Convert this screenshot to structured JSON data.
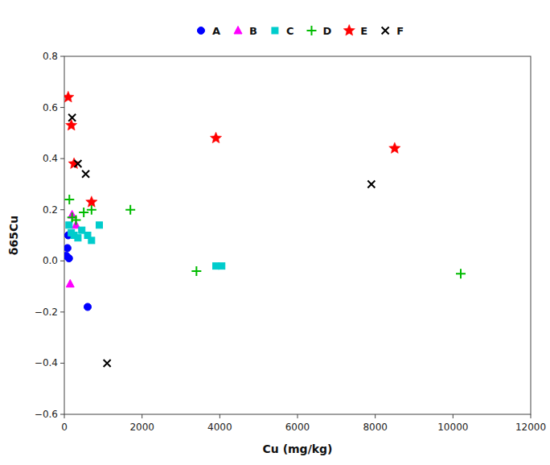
{
  "chart_data": {
    "type": "scatter",
    "xlabel": "Cu (mg/kg)",
    "ylabel": "δ65Cu",
    "xlim": [
      0,
      12000
    ],
    "ylim": [
      -0.6,
      0.8
    ],
    "xticks": [
      0,
      2000,
      4000,
      6000,
      8000,
      10000,
      12000
    ],
    "yticks": [
      {
        "value": -0.6,
        "label": "−0.6"
      },
      {
        "value": -0.4,
        "label": "−0.4"
      },
      {
        "value": -0.2,
        "label": "−0.2"
      },
      {
        "value": 0.0,
        "label": "0.0"
      },
      0.2,
      0.4,
      0.6,
      0.8
    ],
    "grid": false,
    "legend": "top",
    "series": [
      {
        "name": "A",
        "color": "#0000FF",
        "marker": "circle",
        "x": [
          50,
          80,
          100,
          120,
          600
        ],
        "values": [
          0.02,
          0.05,
          0.1,
          0.01,
          -0.18
        ]
      },
      {
        "name": "B",
        "color": "#FF00FF",
        "marker": "triangle",
        "x": [
          150,
          200,
          300
        ],
        "values": [
          -0.09,
          0.18,
          0.14
        ]
      },
      {
        "name": "C",
        "color": "#00CCCC",
        "marker": "square",
        "x": [
          120,
          180,
          250,
          350,
          450,
          600,
          700,
          900,
          3900,
          4050
        ],
        "values": [
          0.14,
          0.11,
          0.1,
          0.09,
          0.12,
          0.1,
          0.08,
          0.14,
          -0.02,
          -0.02
        ]
      },
      {
        "name": "D",
        "color": "#00BB00",
        "marker": "plus",
        "x": [
          130,
          200,
          300,
          500,
          700,
          1700,
          3400,
          10200
        ],
        "values": [
          0.24,
          0.17,
          0.16,
          0.19,
          0.2,
          0.2,
          -0.04,
          -0.05
        ]
      },
      {
        "name": "E",
        "color": "#FF0000",
        "marker": "star",
        "x": [
          100,
          180,
          250,
          700,
          3900,
          8500
        ],
        "values": [
          0.64,
          0.53,
          0.38,
          0.23,
          0.48,
          0.44
        ]
      },
      {
        "name": "F",
        "color": "#000000",
        "marker": "x",
        "x": [
          200,
          350,
          550,
          1100,
          7900
        ],
        "values": [
          0.56,
          0.38,
          0.34,
          -0.4,
          0.3
        ]
      }
    ]
  }
}
